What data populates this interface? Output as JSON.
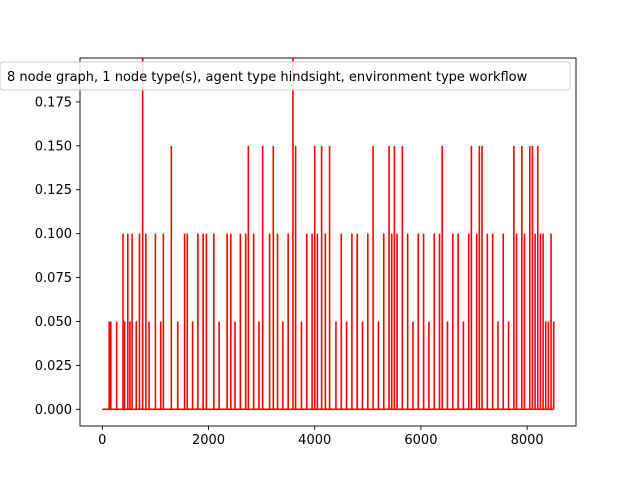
{
  "chart_data": {
    "type": "line",
    "title": "",
    "xlabel": "",
    "ylabel": "",
    "xlim": [
      -420,
      8920
    ],
    "ylim": [
      -0.0095,
      0.2
    ],
    "x_ticks": [
      0,
      2000,
      4000,
      6000,
      8000
    ],
    "x_tick_labels": [
      "0",
      "2000",
      "4000",
      "6000",
      "8000"
    ],
    "y_ticks": [
      0.0,
      0.025,
      0.05,
      0.075,
      0.1,
      0.125,
      0.15,
      0.175
    ],
    "y_tick_labels": [
      "0.000",
      "0.025",
      "0.050",
      "0.075",
      "0.100",
      "0.125",
      "0.150",
      "0.175"
    ],
    "grid": false,
    "legend": {
      "placement": "top-center"
    },
    "series": [
      {
        "name": "8 node graph, 1 node type(s), agent type hindsight, environment type workflow",
        "color": "#ff0000",
        "x_range": [
          0,
          8500
        ],
        "baseline_end": 120,
        "spikes": [
          {
            "x": 130,
            "y": 0.05
          },
          {
            "x": 160,
            "y": 0.05
          },
          {
            "x": 270,
            "y": 0.05
          },
          {
            "x": 390,
            "y": 0.1
          },
          {
            "x": 420,
            "y": 0.05
          },
          {
            "x": 480,
            "y": 0.1
          },
          {
            "x": 520,
            "y": 0.05
          },
          {
            "x": 560,
            "y": 0.1
          },
          {
            "x": 640,
            "y": 0.05
          },
          {
            "x": 700,
            "y": 0.1
          },
          {
            "x": 760,
            "y": 0.2
          },
          {
            "x": 820,
            "y": 0.1
          },
          {
            "x": 880,
            "y": 0.05
          },
          {
            "x": 1000,
            "y": 0.1
          },
          {
            "x": 1100,
            "y": 0.05
          },
          {
            "x": 1150,
            "y": 0.1
          },
          {
            "x": 1300,
            "y": 0.15
          },
          {
            "x": 1420,
            "y": 0.05
          },
          {
            "x": 1550,
            "y": 0.1
          },
          {
            "x": 1600,
            "y": 0.1
          },
          {
            "x": 1700,
            "y": 0.05
          },
          {
            "x": 1800,
            "y": 0.1
          },
          {
            "x": 1900,
            "y": 0.1
          },
          {
            "x": 1960,
            "y": 0.1
          },
          {
            "x": 2100,
            "y": 0.1
          },
          {
            "x": 2200,
            "y": 0.05
          },
          {
            "x": 2350,
            "y": 0.1
          },
          {
            "x": 2420,
            "y": 0.1
          },
          {
            "x": 2500,
            "y": 0.05
          },
          {
            "x": 2600,
            "y": 0.1
          },
          {
            "x": 2700,
            "y": 0.1
          },
          {
            "x": 2750,
            "y": 0.15
          },
          {
            "x": 2850,
            "y": 0.1
          },
          {
            "x": 2950,
            "y": 0.05
          },
          {
            "x": 3020,
            "y": 0.15
          },
          {
            "x": 3150,
            "y": 0.1
          },
          {
            "x": 3220,
            "y": 0.15
          },
          {
            "x": 3300,
            "y": 0.1
          },
          {
            "x": 3400,
            "y": 0.05
          },
          {
            "x": 3500,
            "y": 0.1
          },
          {
            "x": 3590,
            "y": 0.2
          },
          {
            "x": 3640,
            "y": 0.15
          },
          {
            "x": 3750,
            "y": 0.05
          },
          {
            "x": 3850,
            "y": 0.1
          },
          {
            "x": 3950,
            "y": 0.1
          },
          {
            "x": 4000,
            "y": 0.15
          },
          {
            "x": 4050,
            "y": 0.1
          },
          {
            "x": 4130,
            "y": 0.15
          },
          {
            "x": 4200,
            "y": 0.1
          },
          {
            "x": 4280,
            "y": 0.15
          },
          {
            "x": 4400,
            "y": 0.05
          },
          {
            "x": 4500,
            "y": 0.1
          },
          {
            "x": 4600,
            "y": 0.05
          },
          {
            "x": 4700,
            "y": 0.1
          },
          {
            "x": 4800,
            "y": 0.1
          },
          {
            "x": 4900,
            "y": 0.05
          },
          {
            "x": 5000,
            "y": 0.1
          },
          {
            "x": 5100,
            "y": 0.15
          },
          {
            "x": 5200,
            "y": 0.05
          },
          {
            "x": 5300,
            "y": 0.1
          },
          {
            "x": 5400,
            "y": 0.15
          },
          {
            "x": 5450,
            "y": 0.1
          },
          {
            "x": 5500,
            "y": 0.15
          },
          {
            "x": 5550,
            "y": 0.1
          },
          {
            "x": 5650,
            "y": 0.15
          },
          {
            "x": 5750,
            "y": 0.1
          },
          {
            "x": 5850,
            "y": 0.05
          },
          {
            "x": 5950,
            "y": 0.1
          },
          {
            "x": 6050,
            "y": 0.1
          },
          {
            "x": 6150,
            "y": 0.05
          },
          {
            "x": 6250,
            "y": 0.1
          },
          {
            "x": 6350,
            "y": 0.1
          },
          {
            "x": 6400,
            "y": 0.15
          },
          {
            "x": 6500,
            "y": 0.05
          },
          {
            "x": 6600,
            "y": 0.1
          },
          {
            "x": 6700,
            "y": 0.1
          },
          {
            "x": 6800,
            "y": 0.05
          },
          {
            "x": 6900,
            "y": 0.1
          },
          {
            "x": 6950,
            "y": 0.15
          },
          {
            "x": 7050,
            "y": 0.1
          },
          {
            "x": 7100,
            "y": 0.15
          },
          {
            "x": 7150,
            "y": 0.15
          },
          {
            "x": 7250,
            "y": 0.1
          },
          {
            "x": 7350,
            "y": 0.1
          },
          {
            "x": 7450,
            "y": 0.05
          },
          {
            "x": 7550,
            "y": 0.1
          },
          {
            "x": 7650,
            "y": 0.05
          },
          {
            "x": 7750,
            "y": 0.15
          },
          {
            "x": 7800,
            "y": 0.1
          },
          {
            "x": 7900,
            "y": 0.15
          },
          {
            "x": 7950,
            "y": 0.1
          },
          {
            "x": 8050,
            "y": 0.15
          },
          {
            "x": 8100,
            "y": 0.15
          },
          {
            "x": 8150,
            "y": 0.1
          },
          {
            "x": 8200,
            "y": 0.15
          },
          {
            "x": 8250,
            "y": 0.1
          },
          {
            "x": 8300,
            "y": 0.1
          },
          {
            "x": 8350,
            "y": 0.05
          },
          {
            "x": 8400,
            "y": 0.05
          },
          {
            "x": 8450,
            "y": 0.1
          },
          {
            "x": 8500,
            "y": 0.05
          }
        ]
      }
    ]
  }
}
